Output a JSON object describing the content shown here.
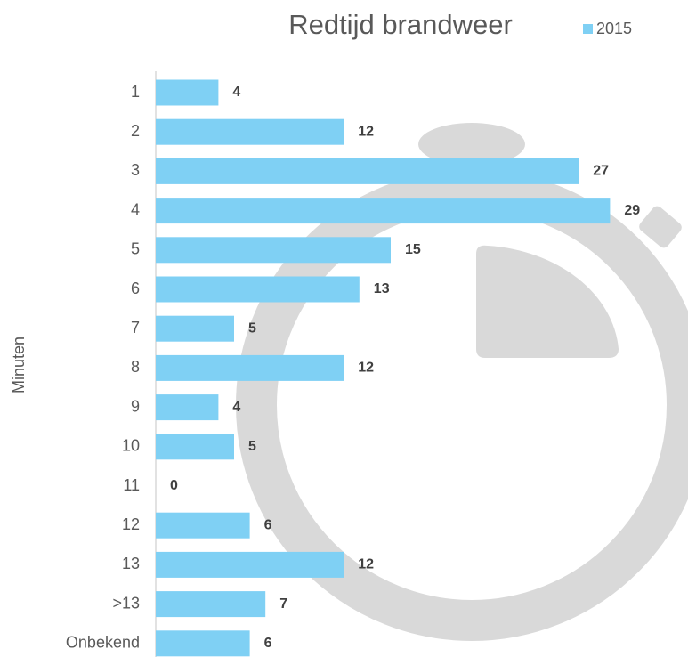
{
  "chart_data": {
    "type": "bar",
    "orientation": "horizontal",
    "title": "Redtijd brandweer",
    "y_label": "Minuten",
    "categories": [
      "1",
      "2",
      "3",
      "4",
      "5",
      "6",
      "7",
      "8",
      "9",
      "10",
      "11",
      "12",
      "13",
      ">13",
      "Onbekend"
    ],
    "series": [
      {
        "name": "2015",
        "color": "#7fd0f4",
        "values": [
          4,
          12,
          27,
          29,
          15,
          13,
          5,
          12,
          4,
          5,
          0,
          6,
          12,
          7,
          6
        ]
      }
    ],
    "legend": "top-right"
  }
}
